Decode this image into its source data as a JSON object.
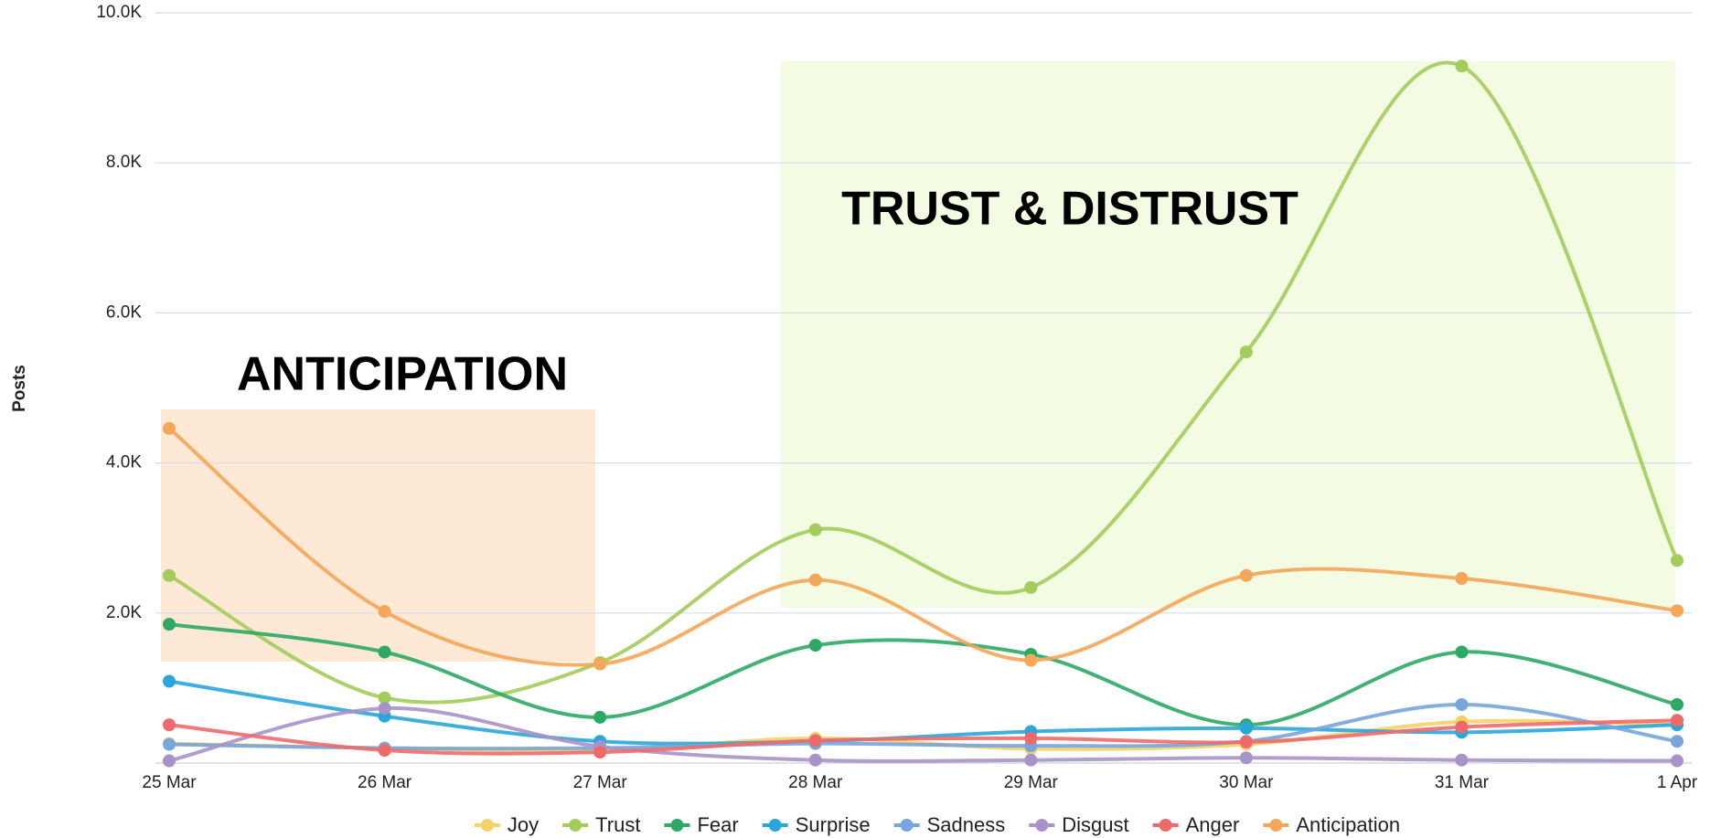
{
  "chart_data": {
    "type": "line",
    "y_label": "Posts",
    "categories": [
      "25 Mar",
      "26 Mar",
      "27 Mar",
      "28 Mar",
      "29 Mar",
      "30 Mar",
      "31 Mar",
      "1 Apr"
    ],
    "ylim": [
      0,
      10000
    ],
    "yticks": [
      {
        "value": 2000,
        "label": "2.0K"
      },
      {
        "value": 4000,
        "label": "4.0K"
      },
      {
        "value": 6000,
        "label": "6.0K"
      },
      {
        "value": 8000,
        "label": "8.0K"
      },
      {
        "value": 10000,
        "label": "10.0K"
      }
    ],
    "grid": true,
    "legend": "bottom",
    "annotations": [
      "ANTICIPATION",
      "TRUST & DISTRUST"
    ],
    "series": [
      {
        "name": "Joy",
        "color": "#f6d168",
        "values": [
          260,
          200,
          170,
          330,
          190,
          250,
          550,
          510
        ]
      },
      {
        "name": "Trust",
        "color": "#a3cc5b",
        "values": [
          2500,
          870,
          1340,
          3110,
          2340,
          5480,
          9290,
          2700
        ]
      },
      {
        "name": "Fear",
        "color": "#2ea964",
        "values": [
          1850,
          1480,
          610,
          1570,
          1450,
          510,
          1480,
          780
        ]
      },
      {
        "name": "Surprise",
        "color": "#2ba6d9",
        "values": [
          1090,
          625,
          290,
          290,
          420,
          465,
          410,
          510
        ]
      },
      {
        "name": "Sadness",
        "color": "#78a5dc",
        "values": [
          250,
          200,
          200,
          260,
          230,
          290,
          780,
          290
        ]
      },
      {
        "name": "Disgust",
        "color": "#a893c8",
        "values": [
          30,
          730,
          220,
          40,
          40,
          70,
          40,
          30
        ]
      },
      {
        "name": "Anger",
        "color": "#ee6a6a",
        "values": [
          510,
          170,
          145,
          300,
          330,
          280,
          480,
          570
        ]
      },
      {
        "name": "Anticipation",
        "color": "#f4a659",
        "values": [
          4460,
          2020,
          1320,
          2440,
          1370,
          2500,
          2460,
          2030
        ]
      }
    ]
  }
}
